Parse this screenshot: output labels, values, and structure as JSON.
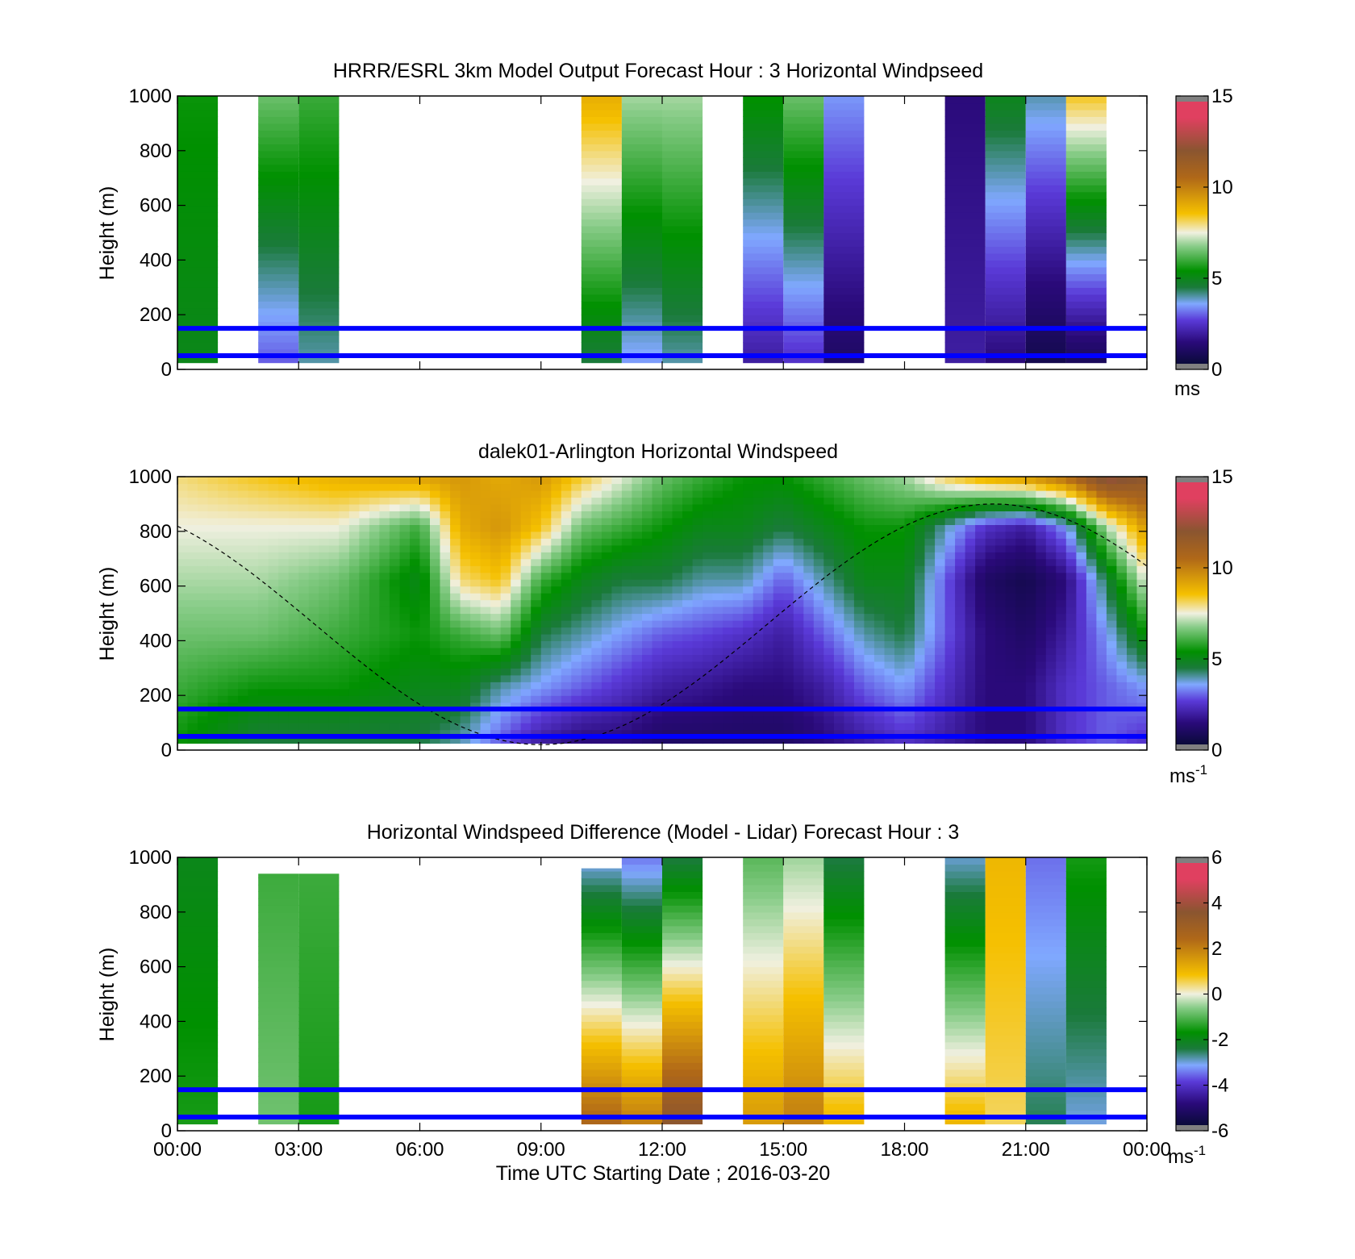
{
  "figure": {
    "xlabel": "Time UTC  Starting Date ; 2016-03-20",
    "xticks": [
      "00:00",
      "03:00",
      "06:00",
      "09:00",
      "12:00",
      "15:00",
      "18:00",
      "21:00",
      "00:00"
    ],
    "ref_lines_m": [
      50,
      150
    ],
    "ref_line_color": "#0000ff"
  },
  "chart_data": [
    {
      "type": "heatmap",
      "title": "HRRR/ESRL 3km Model Output   Forecast Hour : 3 Horizontal Windpseed",
      "ylabel": "Height (m)",
      "xlim_hours": [
        0,
        24
      ],
      "ylim": [
        0,
        1000
      ],
      "yticks": [
        "0",
        "200",
        "400",
        "600",
        "800",
        "1000"
      ],
      "colorbar": {
        "range": [
          0,
          15
        ],
        "ticks": [
          "0",
          "5",
          "10",
          "15"
        ],
        "unit": "ms",
        "unit_sup": ""
      },
      "columns": [
        {
          "t": 0.5,
          "v_bottom": 5.0,
          "v_top": 5.5,
          "top": 1000
        },
        {
          "t": 2.5,
          "v_bottom": 3.0,
          "v_top": 6.5,
          "top": 1000
        },
        {
          "t": 3.5,
          "v_bottom": 4.0,
          "v_top": 6.0,
          "top": 1000
        },
        {
          "t": 10.5,
          "v_bottom": 4.5,
          "v_top": 9.0,
          "top": 1000
        },
        {
          "t": 11.5,
          "v_bottom": 3.5,
          "v_top": 7.0,
          "top": 1000
        },
        {
          "t": 12.5,
          "v_bottom": 4.0,
          "v_top": 7.0,
          "top": 1000
        },
        {
          "t": 14.5,
          "v_bottom": 2.0,
          "v_top": 5.5,
          "top": 1000
        },
        {
          "t": 15.5,
          "v_bottom": 2.5,
          "v_top": 6.5,
          "top": 1000
        },
        {
          "t": 16.5,
          "v_bottom": 1.0,
          "v_top": 3.5,
          "top": 1000
        },
        {
          "t": 19.5,
          "v_bottom": 2.0,
          "v_top": 1.5,
          "top": 1000
        },
        {
          "t": 20.5,
          "v_bottom": 1.5,
          "v_top": 5.0,
          "top": 1000
        },
        {
          "t": 21.5,
          "v_bottom": 0.5,
          "v_top": 4.0,
          "top": 1000
        },
        {
          "t": 22.5,
          "v_bottom": 0.8,
          "v_top": 8.5,
          "top": 1000
        }
      ]
    },
    {
      "type": "heatmap",
      "title": "dalek01-Arlington  Horizontal Windspeed",
      "ylabel": "Height (m)",
      "xlim_hours": [
        0,
        24
      ],
      "ylim": [
        0,
        1000
      ],
      "yticks": [
        "0",
        "200",
        "400",
        "600",
        "800",
        "1000"
      ],
      "colorbar": {
        "range": [
          0,
          15
        ],
        "ticks": [
          "0",
          "5",
          "10",
          "15"
        ],
        "unit": "ms",
        "unit_sup": "-1"
      },
      "profile_times": [
        0,
        2,
        4,
        6,
        7,
        8,
        9,
        10,
        11,
        12,
        13,
        14,
        15,
        16,
        17,
        18,
        19,
        20,
        21,
        22,
        23,
        24
      ],
      "profiles": [
        [
          5.5,
          6.0,
          6.5,
          7.0,
          7.5,
          8.0
        ],
        [
          4.5,
          5.5,
          6.5,
          7.0,
          7.5,
          8.5
        ],
        [
          4.5,
          5.5,
          6.0,
          6.5,
          7.5,
          9.0
        ],
        [
          4.5,
          5.0,
          5.5,
          5.0,
          6.0,
          9.5
        ],
        [
          4.0,
          5.0,
          6.0,
          8.0,
          9.0,
          9.5
        ],
        [
          3.0,
          4.0,
          6.5,
          8.5,
          9.5,
          9.0
        ],
        [
          2.0,
          3.5,
          4.5,
          6.0,
          8.5,
          9.5
        ],
        [
          1.5,
          3.0,
          4.0,
          5.0,
          6.5,
          8.5
        ],
        [
          1.5,
          2.5,
          3.5,
          4.5,
          6.0,
          7.5
        ],
        [
          1.0,
          2.0,
          3.0,
          4.5,
          5.5,
          6.5
        ],
        [
          1.0,
          1.8,
          2.8,
          4.0,
          5.0,
          6.0
        ],
        [
          1.0,
          1.5,
          2.5,
          4.0,
          5.0,
          5.5
        ],
        [
          1.0,
          1.5,
          2.0,
          3.0,
          4.5,
          5.5
        ],
        [
          1.5,
          2.0,
          3.0,
          4.0,
          5.0,
          6.0
        ],
        [
          2.0,
          3.0,
          4.0,
          5.0,
          5.5,
          6.5
        ],
        [
          2.5,
          3.5,
          4.5,
          5.0,
          5.5,
          7.0
        ],
        [
          2.0,
          2.5,
          3.0,
          3.0,
          4.0,
          8.5
        ],
        [
          1.5,
          1.5,
          1.5,
          1.0,
          2.5,
          9.5
        ],
        [
          1.5,
          1.5,
          1.0,
          0.5,
          2.0,
          10.0
        ],
        [
          2.5,
          2.5,
          2.0,
          1.5,
          3.5,
          11.0
        ],
        [
          3.0,
          3.0,
          3.5,
          4.5,
          7.0,
          13.0
        ],
        [
          2.5,
          3.5,
          5.5,
          7.5,
          9.5,
          12.0
        ]
      ]
    },
    {
      "type": "heatmap",
      "title": "Horizontal Windspeed Difference (Model - Lidar) Forecast Hour : 3",
      "ylabel": "Height (m)",
      "xlim_hours": [
        0,
        24
      ],
      "ylim": [
        0,
        1000
      ],
      "yticks": [
        "0",
        "200",
        "400",
        "600",
        "800",
        "1000"
      ],
      "colorbar": {
        "range": [
          -6,
          6
        ],
        "ticks": [
          "-6",
          "-4",
          "-2",
          "0",
          "2",
          "4",
          "6"
        ],
        "unit": "ms",
        "unit_sup": "-1"
      },
      "columns": [
        {
          "t": 0.5,
          "v_bottom": -1.5,
          "v_top": -2.0,
          "top": 1000
        },
        {
          "t": 2.5,
          "v_bottom": -0.8,
          "v_top": -1.2,
          "top": 940
        },
        {
          "t": 3.5,
          "v_bottom": -1.5,
          "v_top": -1.2,
          "top": 940
        },
        {
          "t": 10.5,
          "v_bottom": 2.5,
          "v_top": -3.0,
          "top": 960
        },
        {
          "t": 11.5,
          "v_bottom": 2.0,
          "v_top": -3.5,
          "top": 1000
        },
        {
          "t": 12.5,
          "v_bottom": 3.5,
          "v_top": -2.5,
          "top": 1000
        },
        {
          "t": 14.5,
          "v_bottom": 1.5,
          "v_top": -1.0,
          "top": 1000
        },
        {
          "t": 15.5,
          "v_bottom": 2.0,
          "v_top": -0.5,
          "top": 1000
        },
        {
          "t": 16.5,
          "v_bottom": 1.0,
          "v_top": -2.5,
          "top": 1000
        },
        {
          "t": 19.5,
          "v_bottom": 1.0,
          "v_top": -3.0,
          "top": 1000
        },
        {
          "t": 20.5,
          "v_bottom": 0.5,
          "v_top": 1.0,
          "top": 1000
        },
        {
          "t": 21.5,
          "v_bottom": -2.5,
          "v_top": -3.5,
          "top": 1000
        },
        {
          "t": 22.5,
          "v_bottom": -3.0,
          "v_top": -1.5,
          "top": 1000
        }
      ]
    }
  ]
}
